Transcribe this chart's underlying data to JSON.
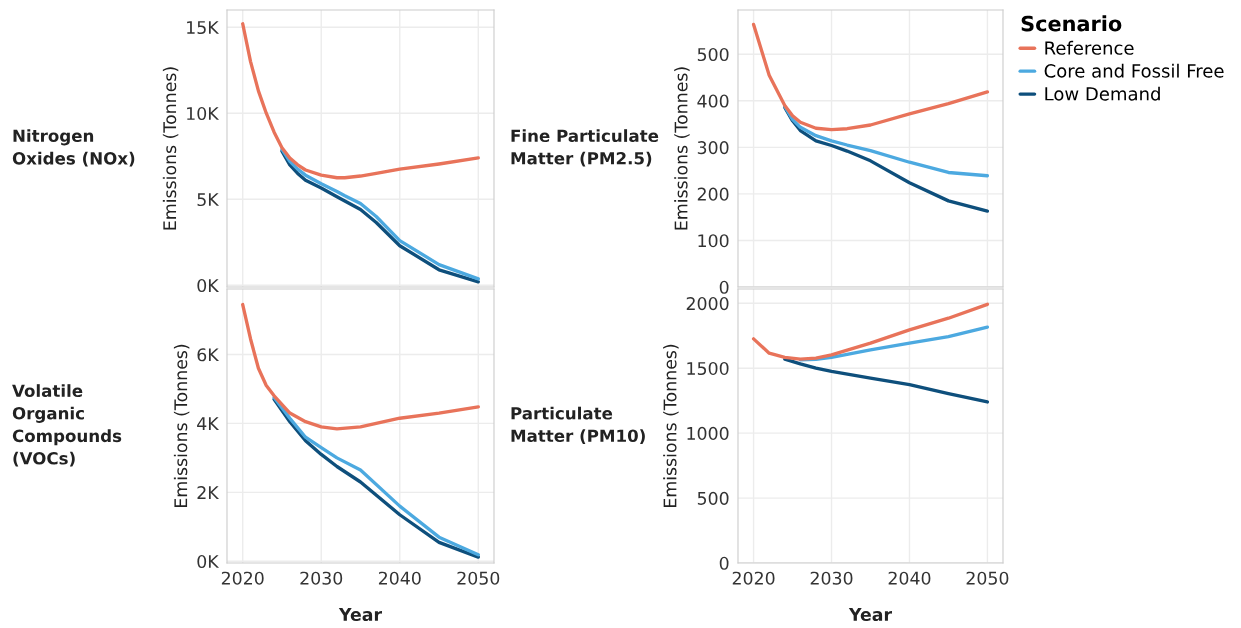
{
  "chart_data": [
    {
      "type": "line",
      "title": "Nitrogen\nOxides (NOx)",
      "ylabel": "Emissions (Tonnes)",
      "xlim": [
        2018,
        2052
      ],
      "xticks": [
        2020,
        2030,
        2040,
        2050
      ],
      "ylim": [
        -100,
        16000
      ],
      "yticks": [
        {
          "value": 0,
          "label": "0K"
        },
        {
          "value": 5000,
          "label": "5K"
        },
        {
          "value": 10000,
          "label": "10K"
        },
        {
          "value": 15000,
          "label": "15K"
        }
      ],
      "tick_labels": "y",
      "grid": true,
      "legend": "right",
      "legend_title": "Scenario",
      "x": [
        2020,
        2021,
        2022,
        2023,
        2024,
        2025,
        2026,
        2027,
        2028,
        2030,
        2032,
        2033,
        2035,
        2037,
        2040,
        2045,
        2050
      ],
      "series": [
        {
          "name": "Reference",
          "color": "#e8735a",
          "values": [
            15200,
            13000,
            11300,
            10000,
            8900,
            8000,
            7400,
            7000,
            6700,
            6400,
            6250,
            6250,
            6350,
            6500,
            6750,
            7050,
            7400
          ]
        },
        {
          "name": "Core and Fossil Free",
          "color": "#4ca9e0",
          "values": [
            null,
            null,
            null,
            null,
            null,
            7900,
            7200,
            6750,
            6400,
            5900,
            5450,
            5200,
            4750,
            4000,
            2600,
            1200,
            370
          ]
        },
        {
          "name": "Low Demand",
          "color": "#0e4f7c",
          "values": [
            null,
            null,
            null,
            null,
            null,
            7800,
            7000,
            6500,
            6100,
            5650,
            5150,
            4900,
            4400,
            3650,
            2300,
            900,
            200
          ]
        }
      ]
    },
    {
      "type": "line",
      "title": "Fine Particulate\nMatter (PM2.5)",
      "ylabel": "Emissions (Tonnes)",
      "xlim": [
        2018,
        2052
      ],
      "xticks": [
        2020,
        2030,
        2040,
        2050
      ],
      "ylim": [
        0,
        595
      ],
      "yticks": [
        0,
        100,
        200,
        300,
        400,
        500
      ],
      "tick_labels": "y",
      "grid": true,
      "x": [
        2020,
        2022,
        2024,
        2025,
        2026,
        2028,
        2030,
        2032,
        2035,
        2040,
        2045,
        2050
      ],
      "series": [
        {
          "color": "#e8735a",
          "values": [
            564,
            455,
            390,
            368,
            354,
            341,
            338,
            340,
            348,
            372,
            394,
            419
          ]
        },
        {
          "color": "#4ca9e0",
          "values": [
            null,
            null,
            388,
            360,
            343,
            325,
            314,
            305,
            293,
            268,
            246,
            239
          ]
        },
        {
          "color": "#0e4f7c",
          "values": [
            null,
            null,
            386,
            357,
            336,
            314,
            304,
            292,
            271,
            224,
            185,
            163
          ]
        }
      ]
    },
    {
      "type": "line",
      "title": "Volatile\nOrganic\nCompounds\n(VOCs)",
      "ylabel": "Emissions (Tonnes)",
      "xlabel": "Year",
      "xlim": [
        2018,
        2052
      ],
      "xticks": [
        2020,
        2030,
        2040,
        2050
      ],
      "ylim": [
        -50,
        7900
      ],
      "yticks": [
        {
          "value": 0,
          "label": "0K"
        },
        {
          "value": 2000,
          "label": "2K"
        },
        {
          "value": 4000,
          "label": "4K"
        },
        {
          "value": 6000,
          "label": "6K"
        }
      ],
      "grid": true,
      "x": [
        2020,
        2021,
        2022,
        2023,
        2024,
        2026,
        2028,
        2030,
        2032,
        2035,
        2040,
        2045,
        2050
      ],
      "series": [
        {
          "color": "#e8735a",
          "values": [
            7450,
            6450,
            5600,
            5100,
            4800,
            4300,
            4050,
            3900,
            3840,
            3900,
            4150,
            4300,
            4480
          ]
        },
        {
          "color": "#4ca9e0",
          "values": [
            null,
            null,
            null,
            null,
            4750,
            4150,
            3600,
            3300,
            3000,
            2650,
            1600,
            700,
            190
          ]
        },
        {
          "color": "#0e4f7c",
          "values": [
            null,
            null,
            null,
            null,
            4700,
            4050,
            3500,
            3100,
            2750,
            2300,
            1350,
            550,
            120
          ]
        }
      ]
    },
    {
      "type": "line",
      "title": "Particulate\nMatter (PM10)",
      "ylabel": "Emissions (Tonnes)",
      "xlabel": "Year",
      "xlim": [
        2018,
        2052
      ],
      "xticks": [
        2020,
        2030,
        2040,
        2050
      ],
      "ylim": [
        0,
        2110
      ],
      "yticks": [
        0,
        500,
        1000,
        1500,
        2000
      ],
      "grid": true,
      "x": [
        2020,
        2022,
        2024,
        2026,
        2028,
        2030,
        2035,
        2040,
        2045,
        2050
      ],
      "series": [
        {
          "color": "#e8735a",
          "values": [
            1726,
            1616,
            1583,
            1570,
            1578,
            1603,
            1693,
            1795,
            1885,
            1992
          ]
        },
        {
          "color": "#4ca9e0",
          "values": [
            null,
            null,
            null,
            1565,
            1568,
            1583,
            1642,
            1693,
            1744,
            1816
          ]
        },
        {
          "color": "#0e4f7c",
          "values": [
            null,
            null,
            1570,
            1534,
            1501,
            1475,
            1424,
            1373,
            1304,
            1240
          ]
        }
      ]
    }
  ]
}
